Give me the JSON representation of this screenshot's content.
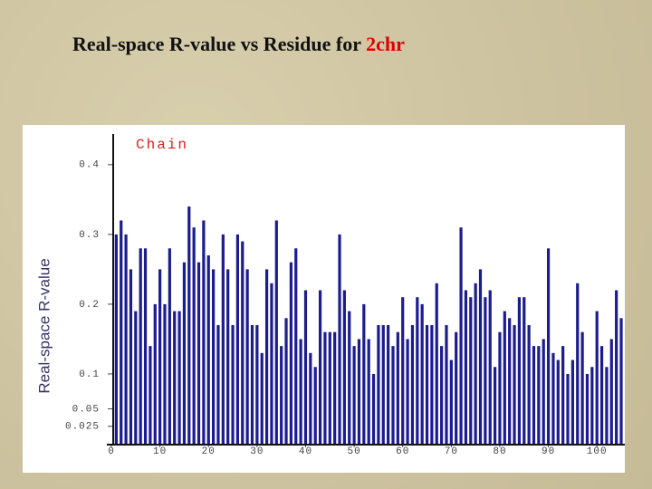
{
  "title": "Real-space R-value vs Residue for",
  "title_id": "2chr",
  "chart_data": {
    "type": "bar",
    "legend": "Chain",
    "ylabel": "Real-space R-value",
    "color": "#1c1c8f",
    "legend_color": "#e02020",
    "x": [
      1,
      2,
      3,
      4,
      5,
      6,
      7,
      8,
      9,
      10,
      11,
      12,
      13,
      14,
      15,
      16,
      17,
      18,
      19,
      20,
      21,
      22,
      23,
      24,
      25,
      26,
      27,
      28,
      29,
      30,
      31,
      32,
      33,
      34,
      35,
      36,
      37,
      38,
      39,
      40,
      41,
      42,
      43,
      44,
      45,
      46,
      47,
      48,
      49,
      50,
      51,
      52,
      53,
      54,
      55,
      56,
      57,
      58,
      59,
      60,
      61,
      62,
      63,
      64,
      65,
      66,
      67,
      68,
      69,
      70,
      71,
      72,
      73,
      74,
      75,
      76,
      77,
      78,
      79,
      80,
      81,
      82,
      83,
      84,
      85,
      86,
      87,
      88,
      89,
      90,
      91,
      92,
      93,
      94,
      95,
      96,
      97,
      98,
      99,
      100,
      101,
      102,
      103,
      104,
      105
    ],
    "values": [
      0.3,
      0.32,
      0.3,
      0.25,
      0.19,
      0.28,
      0.28,
      0.14,
      0.2,
      0.25,
      0.2,
      0.28,
      0.19,
      0.19,
      0.26,
      0.34,
      0.31,
      0.26,
      0.32,
      0.27,
      0.25,
      0.17,
      0.3,
      0.25,
      0.17,
      0.3,
      0.29,
      0.25,
      0.17,
      0.17,
      0.13,
      0.25,
      0.23,
      0.32,
      0.14,
      0.18,
      0.26,
      0.28,
      0.15,
      0.22,
      0.13,
      0.11,
      0.22,
      0.16,
      0.16,
      0.16,
      0.3,
      0.22,
      0.19,
      0.14,
      0.15,
      0.2,
      0.15,
      0.1,
      0.17,
      0.17,
      0.17,
      0.14,
      0.16,
      0.21,
      0.15,
      0.17,
      0.21,
      0.2,
      0.17,
      0.17,
      0.23,
      0.14,
      0.17,
      0.12,
      0.16,
      0.31,
      0.22,
      0.21,
      0.23,
      0.25,
      0.21,
      0.22,
      0.11,
      0.16,
      0.19,
      0.18,
      0.17,
      0.21,
      0.21,
      0.17,
      0.14,
      0.14,
      0.15,
      0.28,
      0.13,
      0.12,
      0.14,
      0.1,
      0.12,
      0.23,
      0.16,
      0.1,
      0.11,
      0.19,
      0.14,
      0.11,
      0.15,
      0.22,
      0.18
    ],
    "xlim": [
      0,
      105
    ],
    "xticks": [
      0,
      10,
      20,
      30,
      40,
      50,
      60,
      70,
      80,
      90,
      100
    ],
    "ylim": [
      0,
      0.44
    ],
    "yticks": [
      0.025,
      0.05,
      0.1,
      0.2,
      0.3,
      0.4
    ]
  }
}
